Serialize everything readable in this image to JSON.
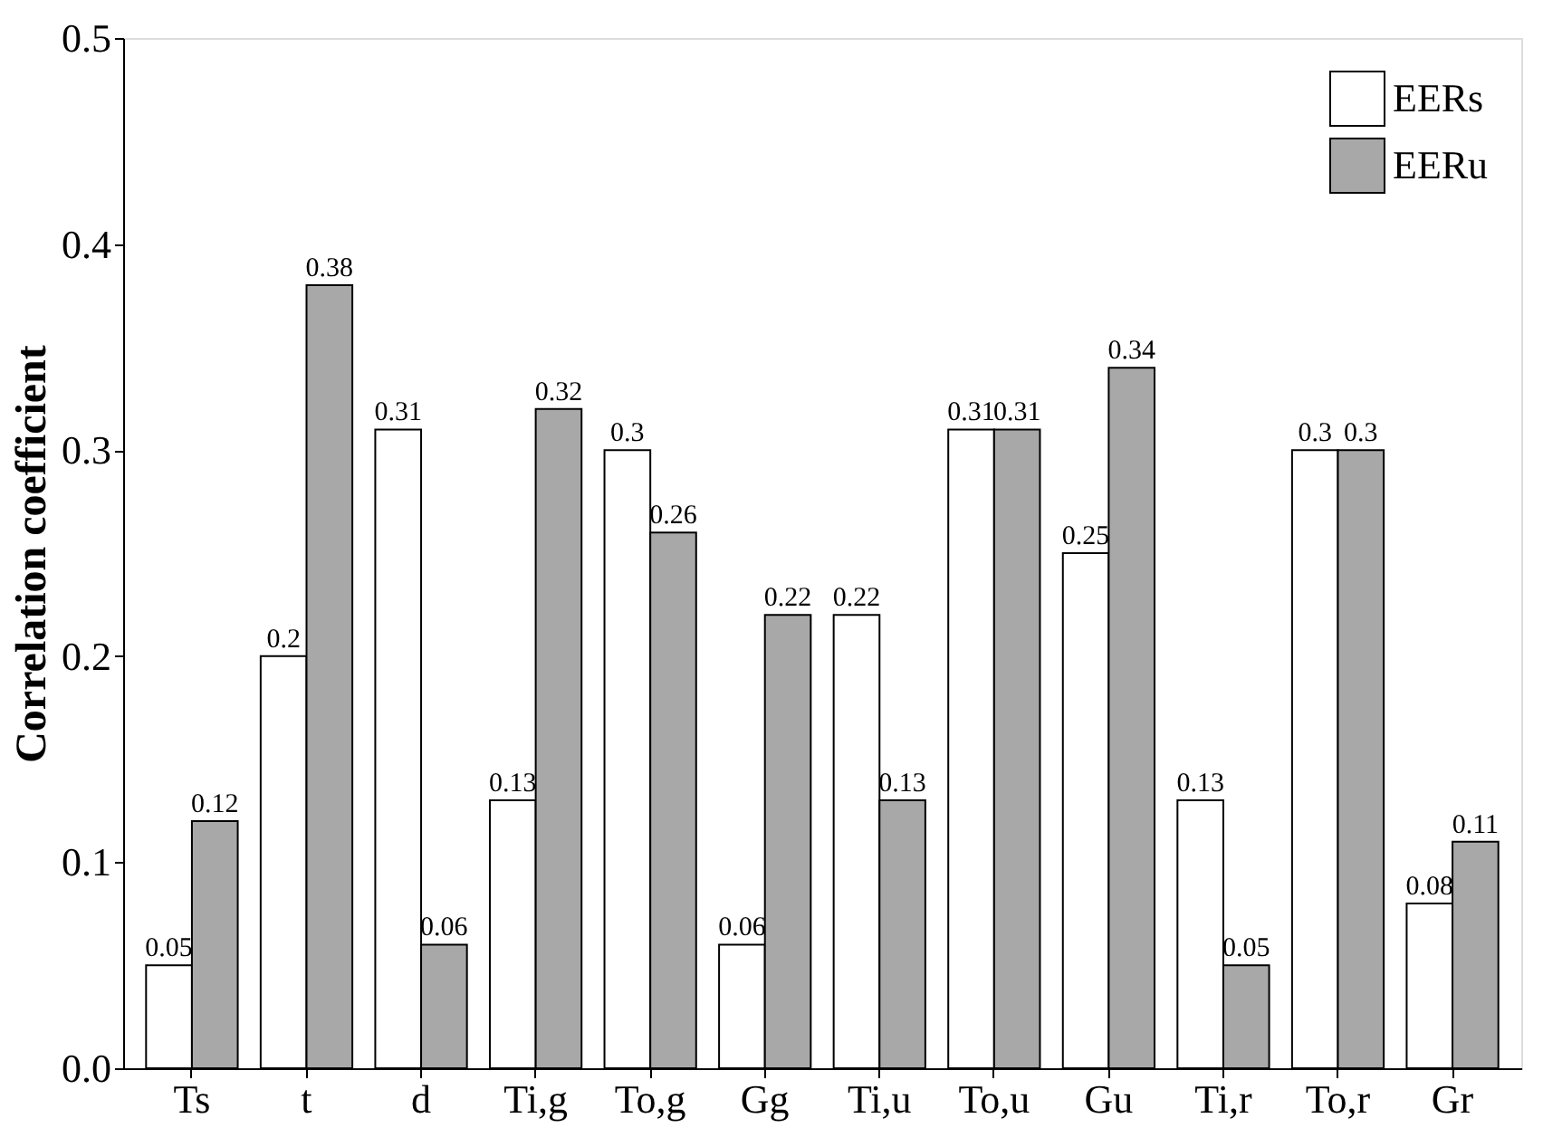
{
  "chart_data": {
    "type": "bar",
    "ylabel": "Correlation coefficient",
    "categories": [
      "Ts",
      "t",
      "d",
      "Ti,g",
      "To,g",
      "Gg",
      "Ti,u",
      "To,u",
      "Gu",
      "Ti,r",
      "To,r",
      "Gr"
    ],
    "series": [
      {
        "name": "EERs",
        "color": "#ffffff",
        "values": [
          0.05,
          0.2,
          0.31,
          0.13,
          0.3,
          0.06,
          0.22,
          0.31,
          0.25,
          0.13,
          0.3,
          0.08
        ]
      },
      {
        "name": "EERu",
        "color": "#a8a8a8",
        "values": [
          0.12,
          0.38,
          0.06,
          0.32,
          0.26,
          0.22,
          0.13,
          0.31,
          0.34,
          0.05,
          0.3,
          0.11
        ]
      }
    ],
    "ylim": [
      0,
      0.5
    ],
    "yticks": [
      {
        "value": 0,
        "label": "0.0"
      },
      {
        "value": 0.1,
        "label": "0.1"
      },
      {
        "value": 0.2,
        "label": "0.2"
      },
      {
        "value": 0.3,
        "label": "0.3"
      },
      {
        "value": 0.4,
        "label": "0.4"
      },
      {
        "value": 0.5,
        "label": "0.5"
      }
    ],
    "data_labels": true,
    "legend": "top right",
    "grid": false
  }
}
